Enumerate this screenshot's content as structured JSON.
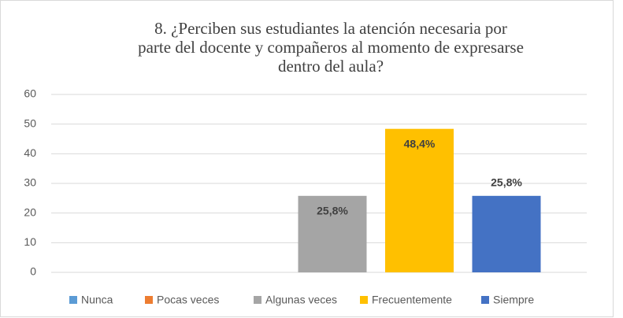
{
  "chart_data": {
    "type": "bar",
    "title": [
      "8. ¿Perciben sus estudiantes la atención necesaria por",
      "parte del docente y compañeros al momento de expresarse",
      "dentro del aula?"
    ],
    "series": [
      {
        "name": "Nunca",
        "color": "#5b9bd5",
        "values": [
          0
        ]
      },
      {
        "name": "Pocas veces",
        "color": "#ed7d31",
        "values": [
          0
        ]
      },
      {
        "name": "Algunas veces",
        "color": "#a5a5a5",
        "values": [
          25.8
        ],
        "value_labels": [
          "25,8%"
        ]
      },
      {
        "name": "Frecuentemente",
        "color": "#ffc000",
        "values": [
          48.4
        ],
        "value_labels": [
          "48,4%"
        ]
      },
      {
        "name": "Siempre",
        "color": "#4472c4",
        "values": [
          25.8
        ],
        "value_labels": [
          "25,8%"
        ]
      }
    ],
    "ylim": [
      0,
      60
    ],
    "yticks": [
      0,
      10,
      20,
      30,
      40,
      50,
      60
    ],
    "grid": true,
    "legend": "bottom"
  }
}
